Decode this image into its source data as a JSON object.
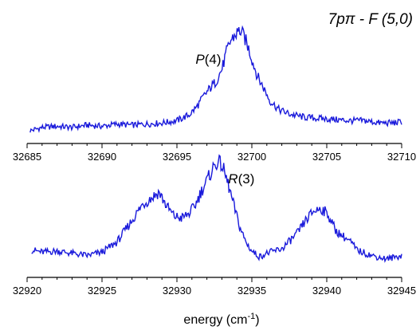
{
  "chart_data": [
    {
      "type": "line",
      "title": "",
      "xlabel": "",
      "ylabel": "",
      "xlim": [
        32685,
        32710
      ],
      "ylim": [
        0,
        1.0
      ],
      "x_ticks": [
        32685,
        32690,
        32695,
        32700,
        32705,
        32710
      ],
      "grid": false,
      "legend": "none",
      "color": "#1a1adb",
      "annotations": [
        {
          "label": "P(4)",
          "x": 32697.1,
          "y": 0.6
        }
      ],
      "series": [
        {
          "x": [
            32685.2,
            32686,
            32687,
            32688,
            32689,
            32690,
            32691,
            32692,
            32693,
            32694,
            32695,
            32695.8,
            32696.3,
            32696.8,
            32697.2,
            32697.6,
            32698,
            32698.3,
            32698.6,
            32698.9,
            32699.2,
            32699.5,
            32699.8,
            32700.1,
            32700.4,
            32700.8,
            32701.2,
            32701.8,
            32702.5,
            32703.5,
            32704.5,
            32705.5,
            32706.5,
            32707.5,
            32708.5,
            32709.5,
            32710
          ],
          "values": [
            0.0,
            0.03,
            0.04,
            0.03,
            0.05,
            0.04,
            0.06,
            0.05,
            0.06,
            0.07,
            0.09,
            0.14,
            0.21,
            0.31,
            0.38,
            0.44,
            0.55,
            0.7,
            0.81,
            0.86,
            0.9,
            0.84,
            0.73,
            0.6,
            0.48,
            0.38,
            0.27,
            0.19,
            0.15,
            0.12,
            0.11,
            0.1,
            0.09,
            0.09,
            0.07,
            0.07,
            0.08
          ]
        }
      ]
    },
    {
      "type": "line",
      "title": "",
      "xlabel": "energy (cm-1)",
      "ylabel": "",
      "xlim": [
        32920,
        32945
      ],
      "ylim": [
        0,
        1.0
      ],
      "x_ticks": [
        32920,
        32925,
        32930,
        32935,
        32940,
        32945
      ],
      "grid": false,
      "legend": "none",
      "color": "#1a1adb",
      "annotations": [
        {
          "label": "R(3)",
          "x": 32934.3,
          "y": 0.72
        }
      ],
      "series": [
        {
          "x": [
            32920.3,
            32921,
            32922,
            32923,
            32924,
            32925,
            32926,
            32927,
            32927.7,
            32928.3,
            32928.8,
            32929.3,
            32929.8,
            32930.3,
            32930.8,
            32931.2,
            32931.6,
            32932,
            32932.4,
            32932.7,
            32933,
            32933.4,
            32933.8,
            32934.2,
            32934.6,
            32935,
            32935.5,
            32936,
            32937,
            32938,
            32938.6,
            32939.1,
            32939.6,
            32940.1,
            32940.6,
            32941.1,
            32941.6,
            32942,
            32943,
            32944,
            32945
          ],
          "values": [
            0.13,
            0.11,
            0.12,
            0.1,
            0.08,
            0.11,
            0.2,
            0.39,
            0.53,
            0.59,
            0.64,
            0.52,
            0.43,
            0.41,
            0.45,
            0.52,
            0.64,
            0.74,
            0.85,
            0.91,
            0.88,
            0.72,
            0.52,
            0.33,
            0.2,
            0.12,
            0.07,
            0.1,
            0.14,
            0.27,
            0.39,
            0.47,
            0.5,
            0.44,
            0.3,
            0.25,
            0.2,
            0.13,
            0.08,
            0.05,
            0.08
          ]
        }
      ]
    }
  ],
  "figure_label": "7pπ - F (5,0)",
  "xaxis_title": "energy (cm",
  "xaxis_title_sup": "-1",
  "xaxis_title_end": ")"
}
